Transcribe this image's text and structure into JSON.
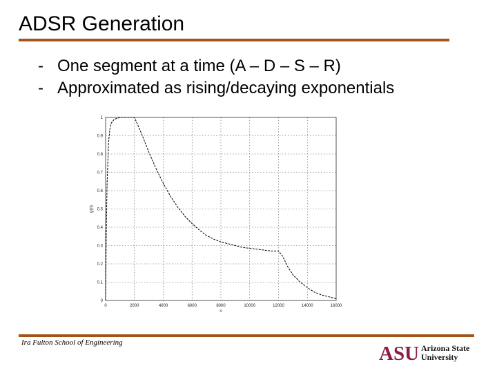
{
  "slide": {
    "title": "ADSR Generation",
    "bullets": [
      {
        "marker": "-",
        "text": "One segment at a time (A – D – S – R)"
      },
      {
        "marker": "-",
        "text": "Approximated as rising/decaying exponentials"
      }
    ],
    "footer": "Ira Fulton School of Engineering",
    "logo": {
      "mark": "ASU",
      "line1": "Arizona State",
      "line2": "University",
      "brand_color": "#8c1d40",
      "accent_color": "#a3541a"
    }
  },
  "chart_data": {
    "type": "line",
    "xlabel": "n",
    "ylabel": "g(n)",
    "xlim": [
      0,
      16000
    ],
    "ylim": [
      0,
      1
    ],
    "grid": true,
    "xticks": [
      "0",
      "2000",
      "4000",
      "6000",
      "8000",
      "10000",
      "12000",
      "14000",
      "16000"
    ],
    "yticks": [
      "0",
      "0.1",
      "0.2",
      "0.3",
      "0.4",
      "0.5",
      "0.6",
      "0.7",
      "0.8",
      "0.9",
      "1"
    ],
    "series": [
      {
        "x": [
          0,
          50,
          100,
          200,
          300,
          400,
          600,
          800,
          1000,
          1200,
          1500,
          1800,
          2000,
          2500,
          3000,
          3500,
          4000,
          4500,
          5000,
          5500,
          6000,
          6500,
          7000,
          7500,
          8000,
          8500,
          9000,
          9500,
          10000,
          10500,
          11000,
          11500,
          12000,
          12300,
          12600,
          13000,
          13500,
          14000,
          14500,
          15000,
          15500,
          16000
        ],
        "y": [
          0,
          0.38,
          0.63,
          0.86,
          0.94,
          0.97,
          0.99,
          0.995,
          1.0,
          1.0,
          1.0,
          1.0,
          1.0,
          0.91,
          0.81,
          0.72,
          0.64,
          0.57,
          0.51,
          0.46,
          0.42,
          0.385,
          0.355,
          0.335,
          0.32,
          0.31,
          0.3,
          0.29,
          0.285,
          0.28,
          0.275,
          0.27,
          0.27,
          0.24,
          0.19,
          0.14,
          0.1,
          0.07,
          0.045,
          0.03,
          0.02,
          0.01
        ]
      }
    ]
  }
}
